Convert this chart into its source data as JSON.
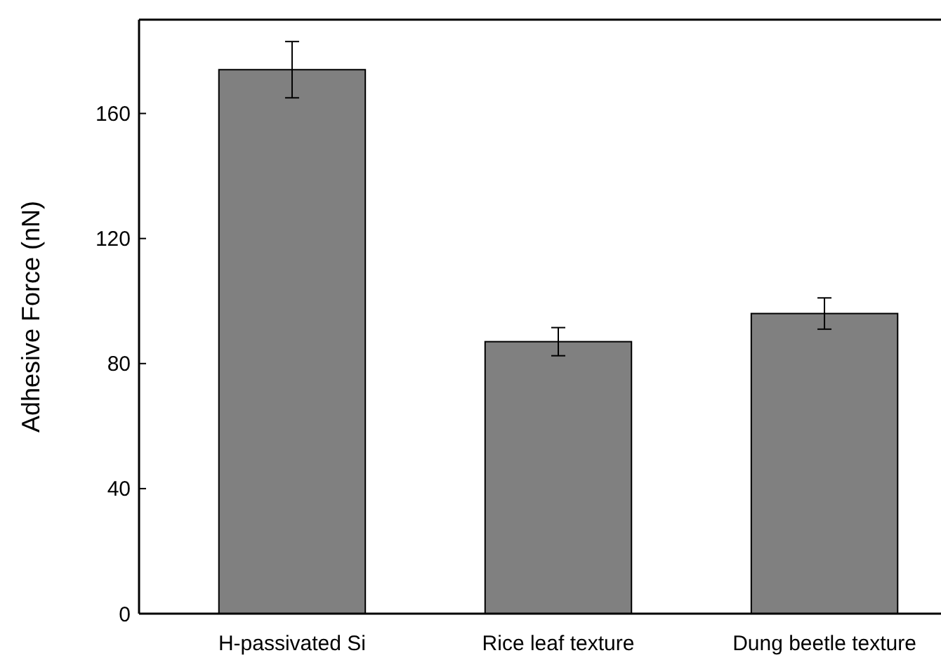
{
  "chart_data": {
    "type": "bar",
    "ylabel": "Adhesive Force (nN)",
    "categories": [
      "H-passivated Si",
      "Rice leaf texture",
      "Dung beetle texture"
    ],
    "values": [
      174,
      87,
      96
    ],
    "errors": [
      9,
      4.5,
      5
    ],
    "color": "#808080",
    "ylim": [
      0,
      190
    ],
    "yticks": [
      0,
      40,
      80,
      120,
      160
    ],
    "grid": false
  }
}
